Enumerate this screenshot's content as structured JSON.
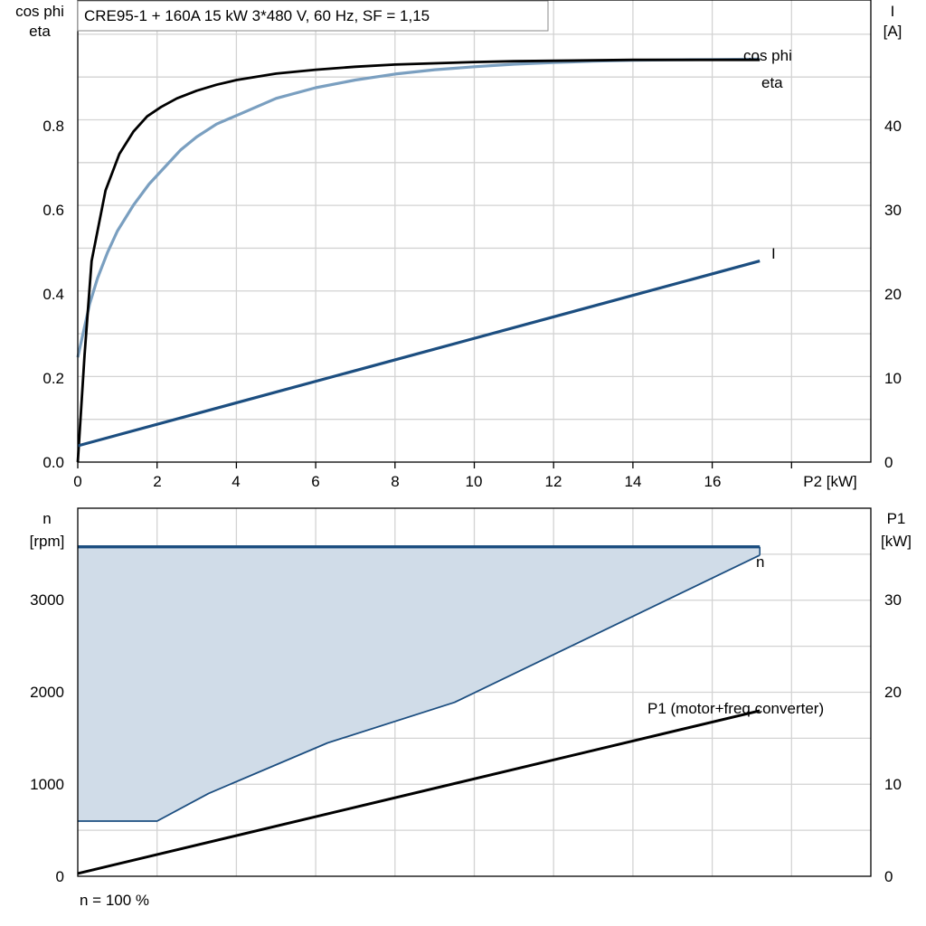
{
  "title": "CRE95-1 + 160A   15 kW   3*480 V, 60 Hz, SF = 1,15",
  "footnote": "n = 100 %",
  "colors": {
    "eta": "#000000",
    "cos_phi": "#7a9fc0",
    "current": "#1c4e80",
    "speed": "#1c4e80",
    "speed_band_fill": "#d0dce8",
    "p1": "#000000",
    "grid": "#d3d3d3"
  },
  "chart_data": [
    {
      "type": "line",
      "xlabel": "P2 [kW]",
      "xticks": [
        "0",
        "2",
        "4",
        "6",
        "8",
        "10",
        "12",
        "14",
        "16"
      ],
      "xlim": [
        0,
        20
      ],
      "y_left": {
        "label_lines": [
          "cos phi",
          "eta"
        ],
        "ticks": [
          "0.0",
          "0.2",
          "0.4",
          "0.6",
          "0.8"
        ],
        "ylim": [
          0,
          1.08
        ]
      },
      "y_right": {
        "label_lines": [
          "I",
          "[A]"
        ],
        "ticks": [
          "0",
          "10",
          "20",
          "30",
          "40"
        ],
        "ylim": [
          0,
          54
        ]
      },
      "series": [
        {
          "name": "eta",
          "axis": "left",
          "color_key": "eta",
          "x": [
            0,
            0.17,
            0.35,
            0.7,
            1.05,
            1.4,
            1.75,
            2.1,
            2.5,
            3.0,
            3.5,
            4.0,
            5.0,
            6.0,
            7.0,
            8.0,
            9.0,
            10.0,
            11.0,
            12.0,
            13.0,
            14.0,
            15.0,
            16.0,
            17.2
          ],
          "y": [
            0.0,
            0.25,
            0.47,
            0.635,
            0.72,
            0.772,
            0.808,
            0.83,
            0.85,
            0.868,
            0.882,
            0.893,
            0.908,
            0.917,
            0.924,
            0.929,
            0.932,
            0.935,
            0.937,
            0.938,
            0.939,
            0.94,
            0.94,
            0.94,
            0.94
          ]
        },
        {
          "name": "cos phi",
          "axis": "left",
          "color_key": "cos_phi",
          "x": [
            0,
            0.3,
            0.5,
            0.75,
            1.0,
            1.4,
            1.8,
            2.2,
            2.6,
            3.0,
            3.5,
            4.0,
            5.0,
            6.0,
            7.0,
            8.0,
            9.0,
            10.0,
            11.0,
            12.0,
            13.0,
            14.0,
            15.0,
            16.0,
            17.2
          ],
          "y": [
            0.245,
            0.37,
            0.43,
            0.49,
            0.54,
            0.6,
            0.65,
            0.69,
            0.73,
            0.76,
            0.79,
            0.81,
            0.85,
            0.875,
            0.893,
            0.907,
            0.917,
            0.924,
            0.93,
            0.934,
            0.937,
            0.939,
            0.94,
            0.941,
            0.942
          ]
        },
        {
          "name": "I",
          "axis": "right",
          "color_key": "current",
          "x": [
            0,
            17.2
          ],
          "y": [
            1.9,
            23.5
          ]
        }
      ]
    },
    {
      "type": "line",
      "xlim": [
        0,
        20
      ],
      "y_left": {
        "label_lines": [
          "n",
          "[rpm]"
        ],
        "ticks": [
          "0",
          "1000",
          "2000",
          "3000"
        ],
        "ylim": [
          0,
          4000
        ]
      },
      "y_right": {
        "label_lines": [
          "P1",
          "[kW]"
        ],
        "ticks": [
          "0",
          "10",
          "20",
          "30"
        ],
        "ylim": [
          0,
          40
        ]
      },
      "series": [
        {
          "name": "n",
          "axis": "left",
          "color_key": "speed",
          "role": "max",
          "x": [
            0,
            17.2
          ],
          "y": [
            3580,
            3580
          ]
        },
        {
          "name": "n",
          "axis": "left",
          "color_key": "speed",
          "role": "min",
          "x": [
            0,
            2.0,
            3.3,
            6.3,
            9.5,
            17.2
          ],
          "y": [
            600,
            600,
            900,
            1450,
            1890,
            3490
          ]
        },
        {
          "name": "P1 (motor+freq.converter)",
          "axis": "right",
          "color_key": "p1",
          "x": [
            0,
            17.2
          ],
          "y": [
            0.3,
            18.0
          ]
        }
      ]
    }
  ]
}
